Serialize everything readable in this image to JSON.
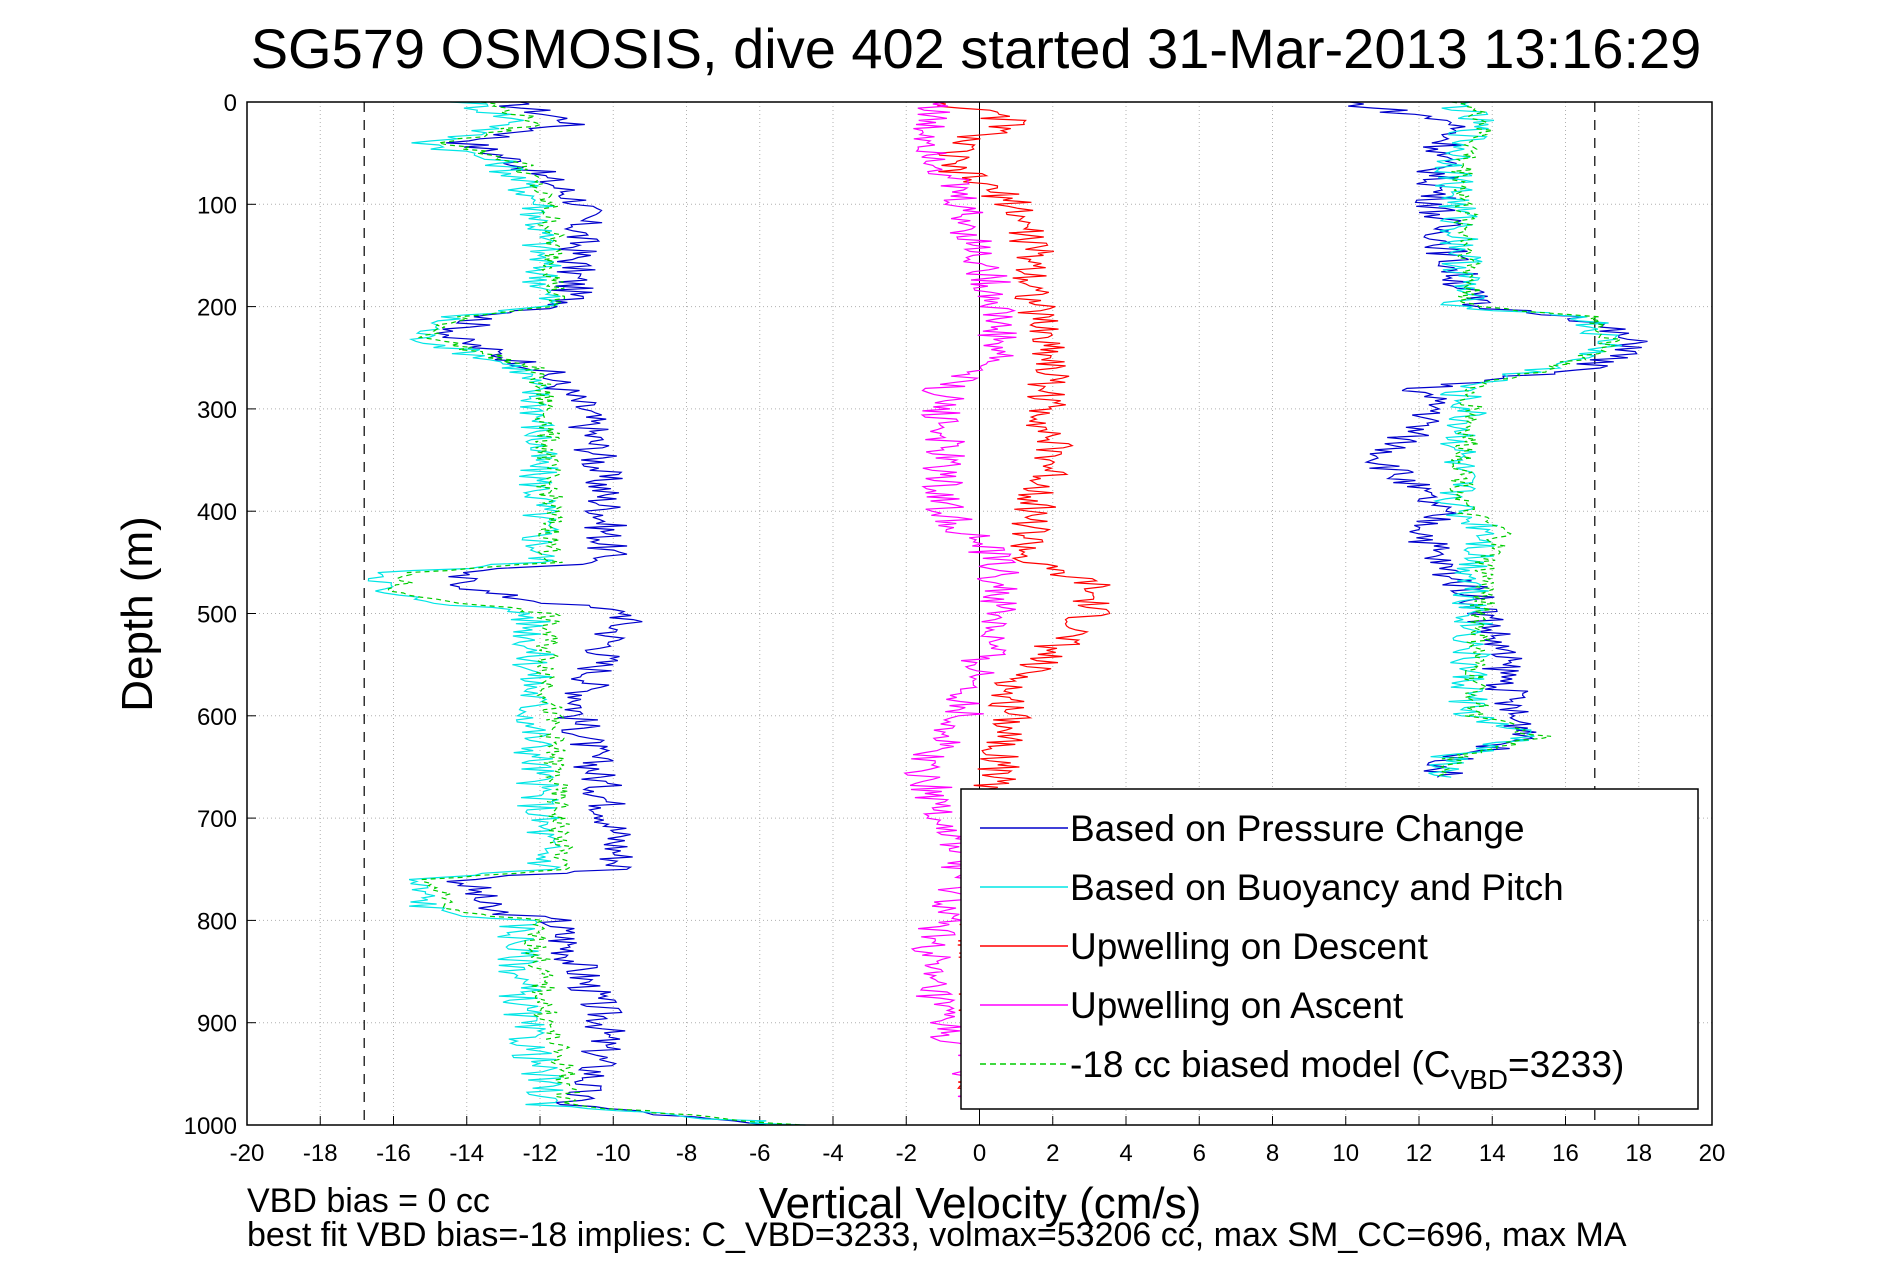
{
  "chart_data": {
    "type": "line",
    "title": "SG579 OSMOSIS, dive 402 started 31-Mar-2013 13:16:29",
    "xlabel": "Vertical Velocity (cm/s)",
    "ylabel": "Depth (m)",
    "xlim": [
      -20,
      20
    ],
    "ylim": [
      0,
      1000
    ],
    "y_reversed": true,
    "grid": true,
    "x_ticks": [
      "-20",
      "-18",
      "-16",
      "-14",
      "-12",
      "-10",
      "-8",
      "-6",
      "-4",
      "-2",
      "0",
      "2",
      "4",
      "6",
      "8",
      "10",
      "12",
      "14",
      "16",
      "18",
      "20"
    ],
    "y_ticks": [
      "0",
      "100",
      "200",
      "300",
      "400",
      "500",
      "600",
      "700",
      "800",
      "900",
      "1000"
    ],
    "reference_lines_x": [
      -16.8,
      16.8
    ],
    "legend_position": "bottom-right",
    "legend": [
      {
        "label": "Based on Pressure Change",
        "color": "#0000cc",
        "dashed": false
      },
      {
        "label": "Based on Buoyancy and Pitch",
        "color": "#00e5e5",
        "dashed": false
      },
      {
        "label": "Upwelling on Descent",
        "color": "#ff0000",
        "dashed": false
      },
      {
        "label": "Upwelling on Ascent",
        "color": "#ff00ff",
        "dashed": false
      },
      {
        "label_prefix": "-18 cc biased model (C",
        "label_sub": "VBD",
        "label_suffix": "=3233)",
        "color": "#00cc00",
        "dashed": true
      }
    ],
    "series": [
      {
        "key": "pressure_descent",
        "color": "#0000cc",
        "depth": [
          0,
          20,
          40,
          60,
          100,
          150,
          200,
          210,
          230,
          260,
          300,
          350,
          400,
          450,
          460,
          480,
          500,
          520,
          600,
          700,
          750,
          760,
          790,
          800,
          900,
          950,
          980,
          1000
        ],
        "velocity": [
          -13,
          -11,
          -14,
          -12.5,
          -10.8,
          -11,
          -11.2,
          -13.5,
          -14.5,
          -12,
          -10.8,
          -10.4,
          -10.2,
          -10.2,
          -14.5,
          -13.5,
          -9.5,
          -10,
          -11,
          -10,
          -9.8,
          -14,
          -13.5,
          -11.6,
          -10.2,
          -10.5,
          -11.2,
          -6
        ]
      },
      {
        "key": "buoyancy_descent",
        "color": "#00e5e5",
        "depth": [
          0,
          20,
          40,
          60,
          100,
          150,
          200,
          210,
          230,
          260,
          300,
          350,
          400,
          450,
          460,
          480,
          500,
          520,
          600,
          700,
          750,
          760,
          790,
          800,
          900,
          950,
          980,
          1000
        ],
        "velocity": [
          -14,
          -12.5,
          -15,
          -13,
          -12,
          -12,
          -11.8,
          -14.5,
          -15.3,
          -12.5,
          -12,
          -12.1,
          -12,
          -12,
          -16,
          -16.5,
          -12.3,
          -12.2,
          -12.2,
          -12,
          -11.8,
          -15.5,
          -15,
          -12.6,
          -12.5,
          -12,
          -11.8,
          -5
        ]
      },
      {
        "key": "model_descent",
        "color": "#00cc00",
        "dashed": true,
        "depth": [
          0,
          20,
          40,
          60,
          100,
          150,
          200,
          210,
          230,
          260,
          300,
          350,
          400,
          450,
          460,
          480,
          500,
          520,
          600,
          700,
          750,
          760,
          790,
          800,
          900,
          950,
          980,
          1000
        ],
        "velocity": [
          -13.5,
          -12,
          -14.5,
          -12.5,
          -11.8,
          -11.6,
          -11.6,
          -14.2,
          -15,
          -12.2,
          -11.8,
          -11.8,
          -11.7,
          -11.7,
          -15.6,
          -16,
          -11.8,
          -11.8,
          -11.7,
          -11.5,
          -11.4,
          -15,
          -14.5,
          -12.2,
          -11.8,
          -11.3,
          -11.2,
          -5
        ]
      },
      {
        "key": "pressure_ascent",
        "color": "#0000cc",
        "depth": [
          0,
          20,
          60,
          100,
          150,
          200,
          210,
          240,
          260,
          280,
          300,
          350,
          400,
          420,
          450,
          480,
          500,
          550,
          600,
          620,
          640,
          660
        ],
        "velocity": [
          10,
          13,
          12.5,
          12.5,
          12.8,
          13.5,
          16.5,
          18,
          16.5,
          12,
          12.5,
          11,
          12.5,
          12.2,
          12.5,
          13.5,
          13.8,
          14.3,
          14.5,
          15.2,
          13,
          12.5
        ]
      },
      {
        "key": "buoyancy_ascent",
        "color": "#00e5e5",
        "depth": [
          0,
          20,
          60,
          100,
          150,
          200,
          210,
          240,
          260,
          280,
          300,
          350,
          400,
          420,
          450,
          480,
          500,
          550,
          600,
          620,
          640,
          660
        ],
        "velocity": [
          13,
          13.5,
          13,
          13,
          13.2,
          13.2,
          16.5,
          17.2,
          15.5,
          13,
          13.3,
          13,
          13,
          14,
          13.5,
          13.5,
          13.5,
          13.3,
          13.4,
          15,
          12.8,
          12.5
        ]
      },
      {
        "key": "model_ascent",
        "color": "#00cc00",
        "dashed": true,
        "depth": [
          0,
          20,
          60,
          100,
          150,
          200,
          210,
          240,
          260,
          280,
          300,
          350,
          400,
          420,
          450,
          480,
          500,
          550,
          600,
          620,
          640,
          660
        ],
        "velocity": [
          13.2,
          13.8,
          13.2,
          13.2,
          13.4,
          13.4,
          16.8,
          17.3,
          15.6,
          13.2,
          13.5,
          13.2,
          13.2,
          14.3,
          13.8,
          13.8,
          13.7,
          13.5,
          13.6,
          15.3,
          13,
          12.7
        ]
      },
      {
        "key": "upwelling_descent",
        "color": "#ff0000",
        "depth": [
          0,
          20,
          40,
          60,
          100,
          150,
          200,
          250,
          300,
          350,
          400,
          450,
          470,
          500,
          520,
          540,
          560,
          580,
          600,
          650,
          700,
          750,
          800,
          900,
          980
        ],
        "velocity": [
          -1,
          1,
          -0.5,
          -1,
          1,
          1.5,
          1.5,
          2,
          1.8,
          2,
          1.5,
          1.2,
          3,
          3,
          2.5,
          1.8,
          1.2,
          0.6,
          1,
          0.5,
          0.3,
          0.2,
          0,
          0,
          0
        ]
      },
      {
        "key": "upwelling_ascent",
        "color": "#ff00ff",
        "depth": [
          0,
          20,
          60,
          100,
          150,
          200,
          250,
          280,
          300,
          350,
          400,
          450,
          500,
          550,
          600,
          650,
          700,
          750,
          800,
          850,
          900,
          950,
          980
        ],
        "velocity": [
          -1,
          -1.5,
          -1,
          -0.5,
          0,
          0.5,
          0.5,
          -1,
          -1,
          -1,
          -1,
          0.5,
          0.5,
          0,
          -0.5,
          -1.5,
          -1,
          -0.5,
          -1,
          -1.5,
          -1,
          -0.2,
          0
        ]
      }
    ]
  },
  "footer": {
    "line1": "VBD bias = 0 cc",
    "line2": "best fit VBD bias=-18 implies: C_VBD=3233, volmax=53206 cc, max SM_CC=696, max MA"
  }
}
